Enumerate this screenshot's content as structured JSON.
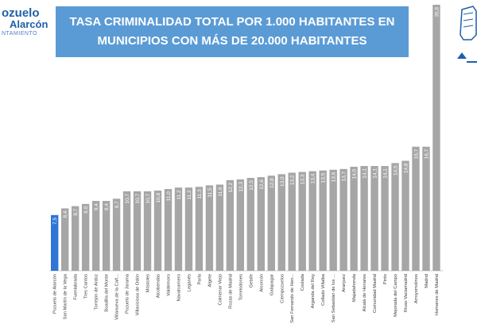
{
  "logo": {
    "line1": "ozuelo",
    "line2": "Alarcón",
    "line3": "NTAMIENTO"
  },
  "title": {
    "line1": "TASA CRIMINALIDAD TOTAL POR 1.000 HABITANTES EN",
    "line2": "MUNICIPIOS CON MÁS DE 20.000 HABITANTES"
  },
  "colors": {
    "highlight": "#2e75d6",
    "bar": "#a6a6a6",
    "title_bg": "#5b9bd5"
  },
  "chart_data": {
    "type": "bar",
    "title": "TASA CRIMINALIDAD TOTAL POR 1.000 HABITANTES EN MUNICIPIOS CON MÁS DE 20.000 HABITANTES",
    "categories": [
      "Pozuelo de Alarcón",
      "San Martín de la Vega",
      "Fuenlabrada",
      "Tres Cantos",
      "Torrejón de Ardoz",
      "Boadilla del Monte",
      "Villanueva de la Cañ...",
      "Pozuelo de Jarama",
      "Villaviciosa de Odón",
      "Móstoles",
      "Alcobendas",
      "Valdemoro",
      "Navalcarnero",
      "Leganés",
      "Parla",
      "Algete",
      "Colmenar Viejo",
      "Rozas de Madrid",
      "Torrelodones",
      "Getafe",
      "Alcorcón",
      "Galapagar",
      "Ciempozuelos",
      "San Fernando de Hen...",
      "Coslada",
      "Arganda del Rey",
      "Collado Villalba",
      "San Sebastián de los ...",
      "Aranjuez",
      "Majadahonda",
      "Alcalá de Henares",
      "Comunidad Madrid",
      "Pinto",
      "Mejorada del Campo",
      "Rivas-Vaciamadrid",
      "Arroyomolinos",
      "Madrid",
      "Humanes de Madrid"
    ],
    "values": [
      7.5,
      8.4,
      8.7,
      9.0,
      9.4,
      9.4,
      9.7,
      10.7,
      10.7,
      10.7,
      10.8,
      11.0,
      11.2,
      11.2,
      11.3,
      11.5,
      11.6,
      12.2,
      12.3,
      12.5,
      12.6,
      12.8,
      13.0,
      13.2,
      13.3,
      13.4,
      13.5,
      13.6,
      13.7,
      14.0,
      14.1,
      14.1,
      14.1,
      14.5,
      14.8,
      16.7,
      16.7,
      35.8
    ],
    "data_labels": [
      "7,5",
      "8,4",
      "8,7",
      "9,0",
      "9,4",
      "9,4",
      "9,7",
      "10,7",
      "10,7",
      "10,7",
      "10,8",
      "11,0",
      "11,2",
      "11,2",
      "11,3",
      "11,5",
      "11,6",
      "12,2",
      "12,3",
      "12,5",
      "12,6",
      "12,8",
      "13,0",
      "13,2",
      "13,3",
      "13,4",
      "13,5",
      "13,6",
      "13,7",
      "14,0",
      "14,1",
      "14,1",
      "14,1",
      "14,5",
      "14,8",
      "16,7",
      "16,7",
      "35,8"
    ],
    "highlight_index": 0,
    "ylim": [
      0,
      35.8
    ],
    "grid": false,
    "legend": "none"
  }
}
